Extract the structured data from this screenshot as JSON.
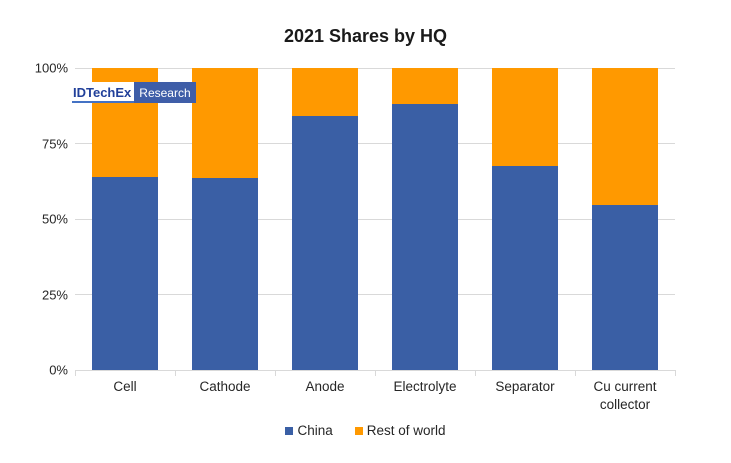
{
  "chart_data": {
    "type": "bar",
    "stacked": true,
    "title": "2021 Shares by HQ",
    "categories": [
      "Cell",
      "Cathode",
      "Anode",
      "Electrolyte",
      "Separator",
      "Cu current collector"
    ],
    "series": [
      {
        "name": "China",
        "color": "#3a5fa5",
        "values": [
          64,
          63.5,
          84,
          88,
          67.5,
          54.5
        ]
      },
      {
        "name": "Rest of world",
        "color": "#ff9900",
        "values": [
          36,
          36.5,
          16,
          12,
          32.5,
          45.5
        ]
      }
    ],
    "xlabel": "",
    "ylabel": "",
    "ylim": [
      0,
      100
    ],
    "y_ticks": [
      "100%",
      "75%",
      "50%",
      "25%",
      "0%"
    ],
    "y_tick_values": [
      100,
      75,
      50,
      25,
      0
    ],
    "grid": true,
    "gridline_color": "#d9d9d9",
    "legend_position": "bottom"
  },
  "logo": {
    "brand": "IDTechEx",
    "suffix": "Research"
  }
}
